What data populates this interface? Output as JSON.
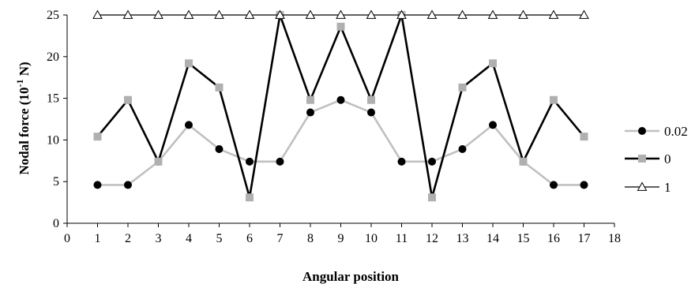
{
  "chart_data": {
    "type": "line",
    "title": "",
    "xlabel": "Angular position",
    "ylabel_main": "Nodal force (10",
    "ylabel_exp": "-1",
    "ylabel_unit": " N)",
    "xlim": [
      0,
      18
    ],
    "ylim": [
      0,
      25
    ],
    "xticks": [
      "0",
      "1",
      "2",
      "3",
      "4",
      "5",
      "6",
      "7",
      "8",
      "9",
      "10",
      "11",
      "12",
      "13",
      "14",
      "15",
      "16",
      "17",
      "18"
    ],
    "yticks": [
      "0",
      "5",
      "10",
      "15",
      "20",
      "25"
    ],
    "grid": false,
    "legend_position": "right",
    "x": [
      1,
      2,
      3,
      4,
      5,
      6,
      7,
      8,
      9,
      10,
      11,
      12,
      13,
      14,
      15,
      16,
      17
    ],
    "series": [
      {
        "name": "0.02",
        "color": "#c0c0c0",
        "marker": "circle",
        "marker_color": "#000000",
        "values": [
          4.6,
          4.6,
          7.4,
          11.8,
          8.9,
          7.4,
          7.4,
          13.3,
          14.8,
          13.3,
          7.4,
          7.4,
          8.9,
          11.8,
          7.4,
          4.6,
          4.6
        ]
      },
      {
        "name": "0",
        "color": "#000000",
        "marker": "square",
        "marker_color": "#b0b0b0",
        "values": [
          10.4,
          14.8,
          7.4,
          19.2,
          16.3,
          3.1,
          25.0,
          14.8,
          23.6,
          14.8,
          25.0,
          3.1,
          16.3,
          19.2,
          7.4,
          14.8,
          10.4
        ]
      },
      {
        "name": "1",
        "color": "#000000",
        "marker": "triangle",
        "marker_color": "#ffffff",
        "values": [
          25,
          25,
          25,
          25,
          25,
          25,
          25,
          25,
          25,
          25,
          25,
          25,
          25,
          25,
          25,
          25,
          25
        ]
      }
    ]
  }
}
